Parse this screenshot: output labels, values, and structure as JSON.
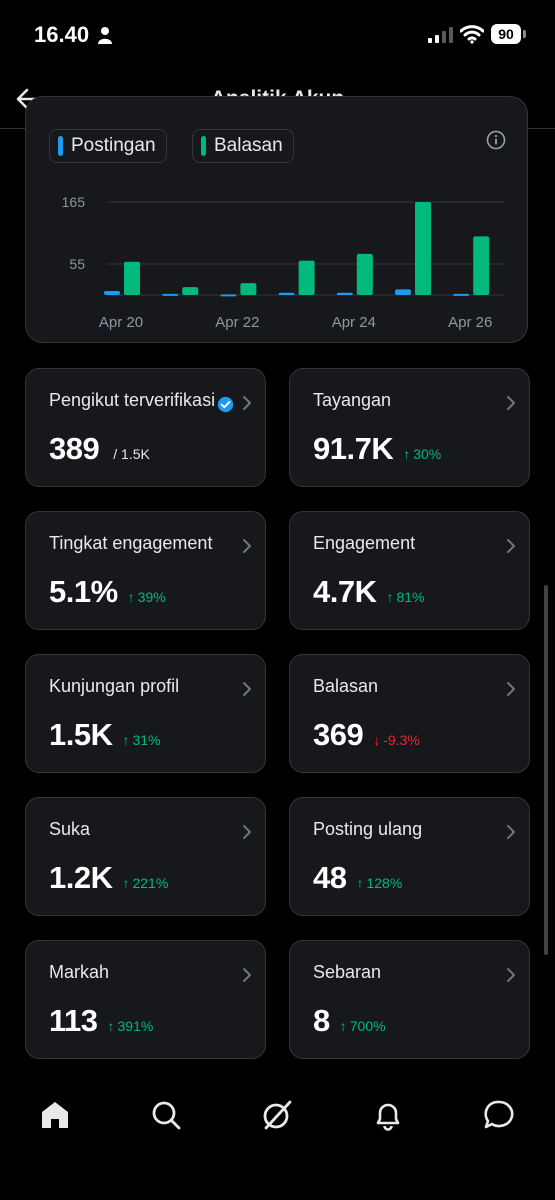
{
  "status_bar": {
    "time": "16.40",
    "battery": "90"
  },
  "header": {
    "title": "Analitik Akun"
  },
  "legend": {
    "items": [
      {
        "label": "Postingan",
        "color": "#1d9bf0"
      },
      {
        "label": "Balasan",
        "color": "#00ba7c"
      }
    ]
  },
  "chart_data": {
    "type": "bar",
    "categories": [
      "Apr 20",
      "Apr 21",
      "Apr 22",
      "Apr 23",
      "Apr 24",
      "Apr 25",
      "Apr 26"
    ],
    "x_tick_labels": [
      "Apr 20",
      "Apr 22",
      "Apr 24",
      "Apr 26"
    ],
    "y_ticks": [
      55,
      165
    ],
    "ylim": [
      0,
      165
    ],
    "series": [
      {
        "name": "Postingan",
        "color": "#1d9bf0",
        "values": [
          7,
          2,
          1,
          4,
          4,
          10,
          2
        ]
      },
      {
        "name": "Balasan",
        "color": "#00ba7c",
        "values": [
          59,
          14,
          21,
          61,
          73,
          165,
          104
        ]
      }
    ],
    "legend_position": "top-left",
    "grid": true
  },
  "tiles": [
    {
      "label": "Pengikut terverifikasi",
      "value": "389",
      "suffix": "/ 1.5K",
      "change": "",
      "direction": "none",
      "verified": true
    },
    {
      "label": "Tayangan",
      "value": "91.7K",
      "suffix": "",
      "change": "30%",
      "direction": "up"
    },
    {
      "label": "Tingkat engagement",
      "value": "5.1%",
      "suffix": "",
      "change": "39%",
      "direction": "up"
    },
    {
      "label": "Engagement",
      "value": "4.7K",
      "suffix": "",
      "change": "81%",
      "direction": "up"
    },
    {
      "label": "Kunjungan profil",
      "value": "1.5K",
      "suffix": "",
      "change": "31%",
      "direction": "up"
    },
    {
      "label": "Balasan",
      "value": "369",
      "suffix": "",
      "change": "-9.3%",
      "direction": "down"
    },
    {
      "label": "Suka",
      "value": "1.2K",
      "suffix": "",
      "change": "221%",
      "direction": "up"
    },
    {
      "label": "Posting ulang",
      "value": "48",
      "suffix": "",
      "change": "128%",
      "direction": "up"
    },
    {
      "label": "Markah",
      "value": "113",
      "suffix": "",
      "change": "391%",
      "direction": "up"
    },
    {
      "label": "Sebaran",
      "value": "8",
      "suffix": "",
      "change": "700%",
      "direction": "up"
    }
  ],
  "colors": {
    "up": "#00ba7c",
    "down": "#f4212e",
    "card": "#16181c",
    "border": "#333639"
  },
  "bottom_nav": {
    "icons": [
      "home-icon",
      "search-icon",
      "grok-icon",
      "notifications-icon",
      "messages-icon"
    ]
  }
}
